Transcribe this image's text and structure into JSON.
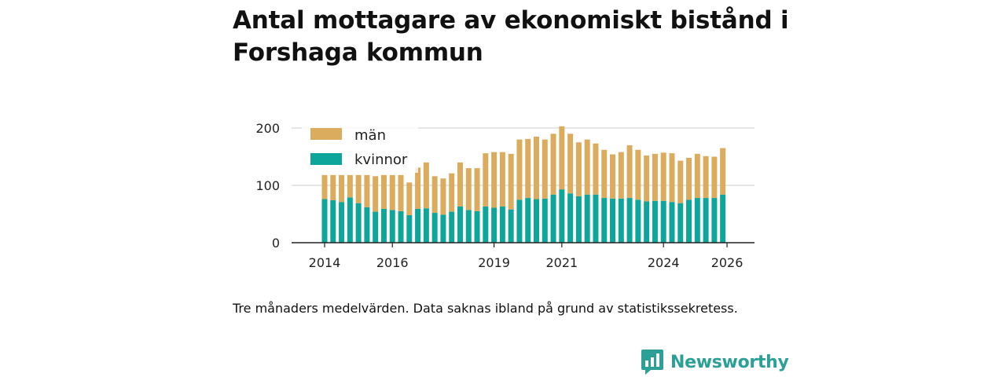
{
  "title": "Antal mottagare av ekonomiskt bistånd i Forshaga kommun",
  "footnote": "Tre månaders medelvärden. Data saknas ibland på grund av statistikssekretess.",
  "brand": {
    "name": "Newsworthy"
  },
  "colors": {
    "man": "#dbac5e",
    "kvinnor": "#0ea59b",
    "grid": "#dddddd",
    "axis": "#222222",
    "brand": "#2ba096"
  },
  "chart_data": {
    "type": "bar",
    "stacked": true,
    "y_ticks": [
      "0",
      "100",
      "200"
    ],
    "ylim": [
      0,
      200
    ],
    "x_ticks": [
      {
        "label": "2014",
        "at": 0
      },
      {
        "label": "2016",
        "at": 8
      },
      {
        "label": "2019",
        "at": 20
      },
      {
        "label": "2021",
        "at": 28
      },
      {
        "label": "2024",
        "at": 40
      },
      {
        "label": "2026",
        "at": 47.5
      }
    ],
    "legend": [
      {
        "key": "man",
        "label": "män"
      },
      {
        "key": "kvinnor",
        "label": "kvinnor"
      }
    ],
    "categories": [
      "2014-Q2",
      "2014-Q3",
      "2014-Q4",
      "2015-Q1",
      "2015-Q2",
      "2015-Q3",
      "2015-Q4",
      "2016-Q1",
      "2016-Q2",
      "2016-Q3",
      "2016-Q4",
      "2017-Q1",
      "2017-Q2",
      "2017-Q3",
      "2017-Q4",
      "2018-Q1",
      "2018-Q2",
      "2018-Q3",
      "2018-Q4",
      "2019-Q1",
      "2019-Q2",
      "2019-Q3",
      "2019-Q4",
      "2020-Q1",
      "2020-Q2",
      "2020-Q3",
      "2020-Q4",
      "2021-Q1",
      "2021-Q2",
      "2021-Q3",
      "2021-Q4",
      "2022-Q1",
      "2022-Q2",
      "2022-Q3",
      "2022-Q4",
      "2023-Q1",
      "2023-Q2",
      "2023-Q3",
      "2023-Q4",
      "2024-Q1",
      "2024-Q2",
      "2024-Q3",
      "2024-Q4",
      "2025-Q1",
      "2025-Q2",
      "2025-Q3",
      "2025-Q4",
      "2026-Q1"
    ],
    "series": [
      {
        "name": "kvinnor",
        "values": [
          76,
          74,
          71,
          79,
          69,
          62,
          54,
          59,
          57,
          55,
          48,
          59,
          60,
          52,
          49,
          54,
          63,
          57,
          55,
          63,
          61,
          63,
          58,
          75,
          78,
          76,
          77,
          84,
          93,
          86,
          81,
          84,
          84,
          78,
          77,
          77,
          78,
          75,
          72,
          73,
          73,
          71,
          69,
          75,
          78,
          78,
          78,
          84
        ]
      },
      {
        "name": "män",
        "values": [
          42,
          44,
          47,
          39,
          49,
          56,
          62,
          59,
          61,
          63,
          57,
          72,
          80,
          64,
          63,
          67,
          77,
          73,
          75,
          93,
          97,
          95,
          97,
          105,
          103,
          109,
          103,
          106,
          110,
          104,
          94,
          96,
          89,
          84,
          77,
          81,
          92,
          87,
          80,
          82,
          84,
          85,
          74,
          73,
          77,
          73,
          72,
          81
        ]
      }
    ]
  }
}
